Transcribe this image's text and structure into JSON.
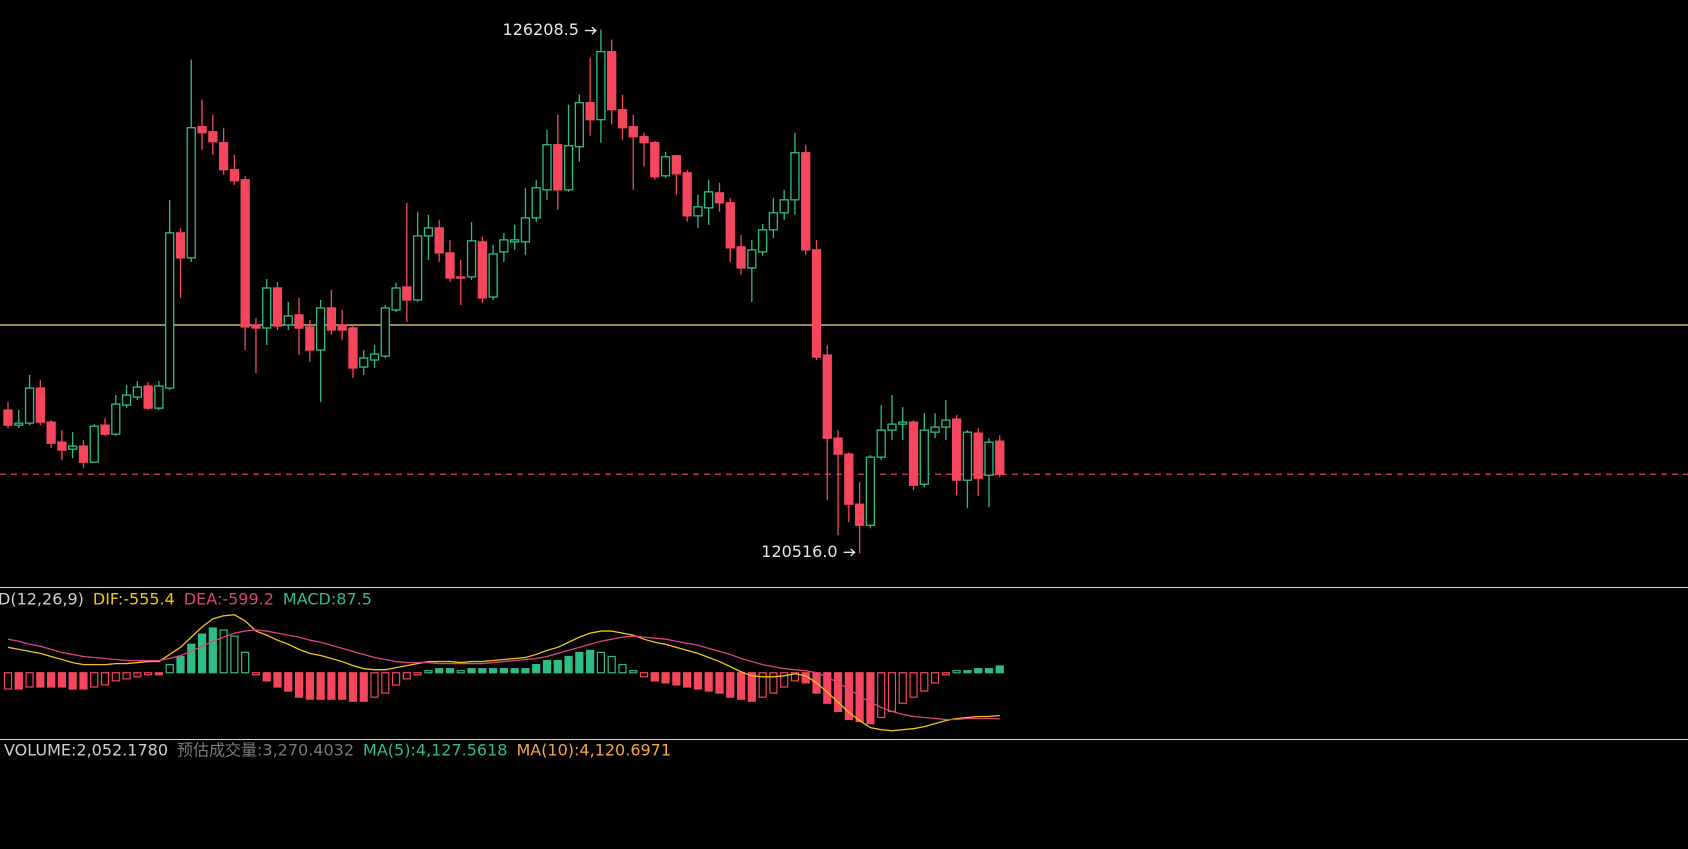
{
  "chart_data": [
    {
      "type": "candlestick",
      "ylim": [
        120150,
        126530
      ],
      "up_color": "#2ebd85",
      "down_color": "#f6465d",
      "open": [
        122073,
        121909,
        121931,
        122312,
        121942,
        121724,
        121648,
        121681,
        121507,
        121909,
        121811,
        122127,
        122214,
        122334,
        122094,
        122312,
        123999,
        123727,
        125153,
        125098,
        124979,
        124685,
        124576,
        122998,
        122965,
        123400,
        122998,
        123107,
        122976,
        122726,
        123183,
        122998,
        122965,
        122541,
        122617,
        122660,
        123161,
        123411,
        123270,
        123966,
        124053,
        123781,
        123520,
        123520,
        123901,
        123302,
        123792,
        123901,
        123901,
        124162,
        124467,
        124957,
        124467,
        124935,
        125414,
        125229,
        125969,
        125338,
        125153,
        125044,
        124979,
        124619,
        124837,
        124652,
        124184,
        124271,
        124434,
        124326,
        123847,
        123618,
        123792,
        124032,
        124217,
        124358,
        124870,
        123814,
        122671,
        121768,
        121594,
        121050,
        120821,
        121561,
        121855,
        121920,
        121942,
        121267,
        121833,
        121888,
        121975,
        121311,
        121822,
        121365,
        121735
      ],
      "high": [
        122160,
        122073,
        122454,
        122399,
        121964,
        121855,
        121833,
        121746,
        121920,
        121985,
        122236,
        122345,
        122388,
        122377,
        122388,
        124358,
        124053,
        125882,
        125447,
        125283,
        125142,
        124848,
        124619,
        123074,
        123498,
        123466,
        123248,
        123292,
        123052,
        123270,
        123379,
        123161,
        122998,
        122726,
        122780,
        123215,
        123455,
        124326,
        124228,
        124195,
        124141,
        123923,
        123705,
        124119,
        123956,
        123868,
        123999,
        124086,
        124489,
        124576,
        125120,
        125283,
        125392,
        125501,
        125904,
        126208.5,
        126100,
        125501,
        125283,
        125087,
        125000,
        124881,
        124848,
        124685,
        124413,
        124576,
        124543,
        124380,
        123977,
        123923,
        124097,
        124380,
        124467,
        125087,
        124957,
        123923,
        122780,
        121855,
        121615,
        121289,
        121583,
        122127,
        122236,
        122105,
        121964,
        122040,
        122040,
        122181,
        122018,
        121855,
        121877,
        121768,
        121800
      ],
      "low": [
        121877,
        121877,
        121909,
        121909,
        121659,
        121528,
        121550,
        121441,
        121496,
        121790,
        121790,
        122094,
        122181,
        122073,
        122073,
        122290,
        123292,
        123683,
        124902,
        124848,
        124630,
        124521,
        122726,
        122475,
        122780,
        122943,
        122943,
        122671,
        122595,
        122160,
        122889,
        122834,
        122421,
        122454,
        122530,
        122639,
        123139,
        123030,
        123248,
        123705,
        123683,
        123466,
        123215,
        123488,
        123237,
        123270,
        123683,
        123814,
        123760,
        124119,
        124358,
        124249,
        124445,
        124772,
        125055,
        124979,
        125175,
        125011,
        124467,
        124717,
        124576,
        124598,
        124413,
        124119,
        124053,
        124086,
        124228,
        123683,
        123542,
        123248,
        123749,
        123945,
        124141,
        124195,
        123760,
        122617,
        121093,
        120712,
        120854,
        120516,
        120788,
        121528,
        121746,
        121746,
        121202,
        121235,
        121768,
        121746,
        121147,
        121006,
        121137,
        121017,
        121343
      ],
      "close": [
        121909,
        121931,
        122312,
        121942,
        121713,
        121637,
        121681,
        121507,
        121898,
        121811,
        122138,
        122236,
        122323,
        122094,
        122334,
        123999,
        123727,
        125142,
        125087,
        124990,
        124685,
        124565,
        122976,
        122965,
        123400,
        122987,
        123096,
        122965,
        122726,
        123183,
        122943,
        122943,
        122530,
        122639,
        122682,
        123183,
        123400,
        123270,
        123966,
        124053,
        123781,
        123509,
        123509,
        123912,
        123292,
        123770,
        123923,
        123923,
        124162,
        124489,
        124957,
        124467,
        124946,
        125414,
        125229,
        125969,
        125338,
        125142,
        125044,
        124979,
        124609,
        124826,
        124641,
        124184,
        124282,
        124445,
        124326,
        123836,
        123618,
        123814,
        124032,
        124217,
        124358,
        124870,
        123814,
        122649,
        121768,
        121594,
        121050,
        120821,
        121561,
        121855,
        121920,
        121942,
        121256,
        121855,
        121888,
        121964,
        121311,
        121833,
        121332,
        121724,
        121376
      ],
      "reference_lines": [
        {
          "value": 122998,
          "color": "#f0d98a",
          "style": "solid"
        },
        {
          "value": 121376,
          "color": "#f6465d",
          "style": "dashed"
        }
      ],
      "annotations": [
        {
          "value": 126208.5,
          "label": "126208.5"
        },
        {
          "value": 120516,
          "label": "120516.0"
        }
      ]
    },
    {
      "type": "macd",
      "title": "D(12,26,9)",
      "ylim": [
        -860,
        1100
      ],
      "up_color": "#2ebd85",
      "down_color": "#f6465d",
      "series": [
        {
          "name": "DIF",
          "label": "DIF:-555.4",
          "color": "#f0c419",
          "type": "line",
          "values": [
            330,
            303.6,
            277.2,
            250.8,
            211.2,
            171.6,
            132,
            105.6,
            105.6,
            105.6,
            118.8,
            118.8,
            132,
            145.2,
            145.2,
            237.6,
            330,
            462,
            594,
            699.6,
            739.2,
            752.4,
            673.2,
            541.2,
            488.4,
            422.4,
            369.6,
            303.6,
            250.8,
            224.4,
            184.8,
            145.2,
            92.4,
            52.8,
            39.6,
            39.6,
            66,
            92.4,
            118.8,
            145.2,
            145.2,
            145.2,
            132,
            145.2,
            145.2,
            158.4,
            171.6,
            184.8,
            198,
            237.6,
            290.4,
            330,
            396,
            462,
            514.8,
            541.2,
            541.2,
            514.8,
            488.4,
            435.6,
            396,
            369.6,
            330,
            290.4,
            250.8,
            198,
            145.2,
            79.2,
            13.2,
            -39.6,
            -52.8,
            -52.8,
            -39.6,
            -13.2,
            -39.6,
            -132,
            -250.8,
            -382.8,
            -514.8,
            -620.4,
            -712.8,
            -739.2,
            -752.4,
            -739.2,
            -726,
            -699.6,
            -660,
            -620.4,
            -594,
            -580.8,
            -567.6,
            -567.6,
            -555.4
          ]
        },
        {
          "name": "DEA",
          "label": "DEA:-599.2",
          "color": "#d9457f",
          "type": "line",
          "values": [
            435.6,
            409.2,
            369.6,
            343.2,
            303.6,
            264,
            237.6,
            211.2,
            198,
            184.8,
            171.6,
            158.4,
            158.4,
            158.4,
            158.4,
            184.8,
            224.4,
            277.2,
            343.2,
            409.2,
            462,
            514.8,
            541.2,
            554.4,
            541.2,
            514.8,
            488.4,
            462,
            422.4,
            396,
            356.4,
            316.8,
            277.2,
            237.6,
            198,
            171.6,
            145.2,
            132,
            132,
            132,
            118.8,
            118.8,
            118.8,
            118.8,
            118.8,
            132,
            145.2,
            158.4,
            171.6,
            184.8,
            211.2,
            250.8,
            290.4,
            330,
            369.6,
            409.2,
            435.6,
            462,
            475.2,
            462,
            448.8,
            435.6,
            409.2,
            382.8,
            356.4,
            316.8,
            277.2,
            237.6,
            184.8,
            145.2,
            105.6,
            79.2,
            52.8,
            39.6,
            26.4,
            0,
            -52.8,
            -132,
            -211.2,
            -303.6,
            -382.8,
            -448.8,
            -501.6,
            -541.2,
            -567.6,
            -580.8,
            -594,
            -607.2,
            -607.2,
            -594,
            -594,
            -594,
            -599.2
          ]
        },
        {
          "name": "MACD",
          "label": "MACD:87.5",
          "color": "#2ebd85",
          "type": "bar",
          "values": [
            -211.2,
            -211.2,
            -184.8,
            -184.8,
            -184.8,
            -184.8,
            -211.2,
            -211.2,
            -184.8,
            -158.4,
            -105.6,
            -79.2,
            -52.8,
            -26.4,
            -26.4,
            105.6,
            211.2,
            369.6,
            501.6,
            580.8,
            554.4,
            475.2,
            264,
            -26.4,
            -105.6,
            -184.8,
            -237.6,
            -316.8,
            -343.2,
            -343.2,
            -343.2,
            -343.2,
            -369.6,
            -369.6,
            -316.8,
            -264,
            -158.4,
            -79.2,
            -26.4,
            26.4,
            52.8,
            52.8,
            26.4,
            52.8,
            52.8,
            52.8,
            52.8,
            52.8,
            52.8,
            105.6,
            158.4,
            158.4,
            211.2,
            264,
            290.4,
            264,
            211.2,
            105.6,
            26.4,
            -52.8,
            -105.6,
            -132,
            -158.4,
            -184.8,
            -211.2,
            -237.6,
            -264,
            -316.8,
            -343.2,
            -369.6,
            -316.8,
            -264,
            -184.8,
            -105.6,
            -132,
            -264,
            -396,
            -501.6,
            -607.2,
            -633.6,
            -660,
            -580.8,
            -501.6,
            -396,
            -316.8,
            -237.6,
            -132,
            -26.4,
            26.4,
            26.4,
            52.8,
            52.8,
            87.5
          ]
        }
      ]
    },
    {
      "type": "volume",
      "legend": [
        {
          "text": "VOLUME:2,052.1780",
          "color": "#cfcfcf"
        },
        {
          "text": "预估成交量:3,270.4032",
          "color": "#7a7a7a"
        },
        {
          "text": "MA(5):4,127.5618",
          "color": "#2ebd85"
        },
        {
          "text": "MA(10):4,120.6971",
          "color": "#f0a940"
        }
      ]
    }
  ]
}
